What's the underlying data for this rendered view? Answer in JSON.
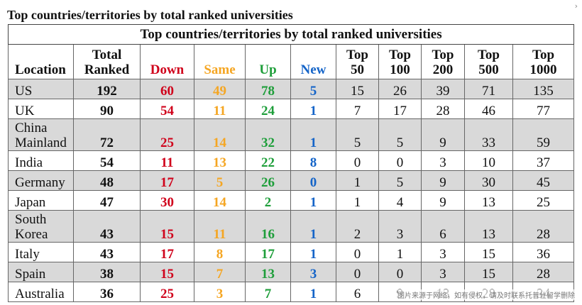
{
  "heading": "Top countries/territories by total ranked universities",
  "corner_mark": "›",
  "table": {
    "caption": "Top countries/territories by total ranked universities",
    "headers": [
      [
        "Location"
      ],
      [
        "Total",
        "Ranked"
      ],
      [
        "Down"
      ],
      [
        "Same"
      ],
      [
        "Up"
      ],
      [
        "New"
      ],
      [
        "Top",
        "50"
      ],
      [
        "Top",
        "100"
      ],
      [
        "Top",
        "200"
      ],
      [
        "Top",
        "500"
      ],
      [
        "Top",
        "1000"
      ]
    ],
    "rows": [
      {
        "location": [
          "US"
        ],
        "cells": [
          "192",
          "60",
          "49",
          "78",
          "5",
          "15",
          "26",
          "39",
          "71",
          "135"
        ]
      },
      {
        "location": [
          "UK"
        ],
        "cells": [
          "90",
          "54",
          "11",
          "24",
          "1",
          "7",
          "17",
          "28",
          "46",
          "77"
        ]
      },
      {
        "location": [
          "China",
          "Mainland"
        ],
        "cells": [
          "72",
          "25",
          "14",
          "32",
          "1",
          "5",
          "5",
          "9",
          "33",
          "59"
        ]
      },
      {
        "location": [
          "India"
        ],
        "cells": [
          "54",
          "11",
          "13",
          "22",
          "8",
          "0",
          "0",
          "3",
          "10",
          "37"
        ]
      },
      {
        "location": [
          "Germany"
        ],
        "cells": [
          "48",
          "17",
          "5",
          "26",
          "0",
          "1",
          "5",
          "9",
          "30",
          "45"
        ]
      },
      {
        "location": [
          "Japan"
        ],
        "cells": [
          "47",
          "30",
          "14",
          "2",
          "1",
          "1",
          "4",
          "9",
          "13",
          "25"
        ]
      },
      {
        "location": [
          "South",
          "Korea"
        ],
        "cells": [
          "43",
          "15",
          "11",
          "16",
          "1",
          "2",
          "3",
          "6",
          "13",
          "28"
        ]
      },
      {
        "location": [
          "Italy"
        ],
        "cells": [
          "43",
          "17",
          "8",
          "17",
          "1",
          "0",
          "1",
          "3",
          "15",
          "36"
        ]
      },
      {
        "location": [
          "Spain"
        ],
        "cells": [
          "38",
          "15",
          "7",
          "13",
          "3",
          "0",
          "0",
          "3",
          "15",
          "28"
        ]
      },
      {
        "location": [
          "Australia"
        ],
        "cells": [
          "36",
          "25",
          "3",
          "7",
          "1",
          "6",
          "9",
          "13",
          "28",
          "34"
        ]
      }
    ]
  },
  "colors": {
    "down": "#d0021b",
    "same": "#f5a623",
    "up": "#1e9e3a",
    "new": "#1464c8",
    "shade": "#d9d9d9"
  },
  "watermark": "图片来源于网络，如有侵权，请及时联系托普仕留学删除"
}
